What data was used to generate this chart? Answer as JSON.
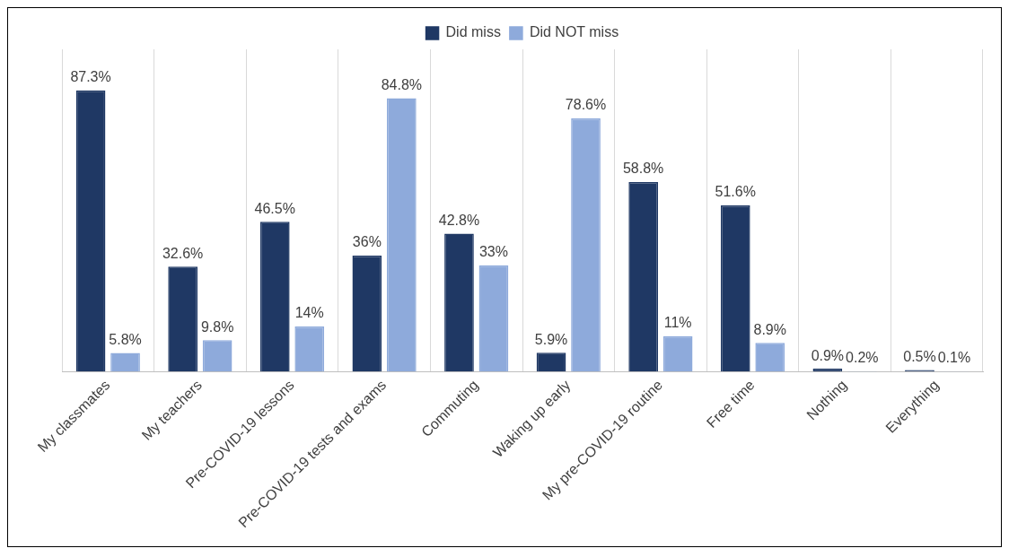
{
  "chart_data": {
    "type": "bar",
    "categories": [
      "My classmates",
      "My teachers",
      "Pre-COVID-19 lessons",
      "Pre-COVID-19 tests and exams",
      "Commuting",
      "Waking up early",
      "My pre-COVID-19 routine",
      "Free time",
      "Nothing",
      "Everything"
    ],
    "series": [
      {
        "name": "Did miss",
        "color": "#1f3864",
        "values": [
          87.3,
          32.6,
          46.5,
          36,
          42.8,
          5.9,
          58.8,
          51.6,
          0.9,
          0.5
        ],
        "value_labels": [
          "87.3%",
          "32.6%",
          "46.5%",
          "36%",
          "42.8%",
          "5.9%",
          "58.8%",
          "51.6%",
          "0.9%",
          "0.5%"
        ]
      },
      {
        "name": "Did NOT miss",
        "color": "#8eaadb",
        "values": [
          5.8,
          9.8,
          14,
          84.8,
          33,
          78.6,
          11,
          8.9,
          0.2,
          0.1
        ],
        "value_labels": [
          "5.8%",
          "9.8%",
          "14%",
          "84.8%",
          "33%",
          "78.6%",
          "11%",
          "8.9%",
          "0.2%",
          "0.1%"
        ]
      }
    ],
    "grid": "x",
    "legend": "top"
  }
}
